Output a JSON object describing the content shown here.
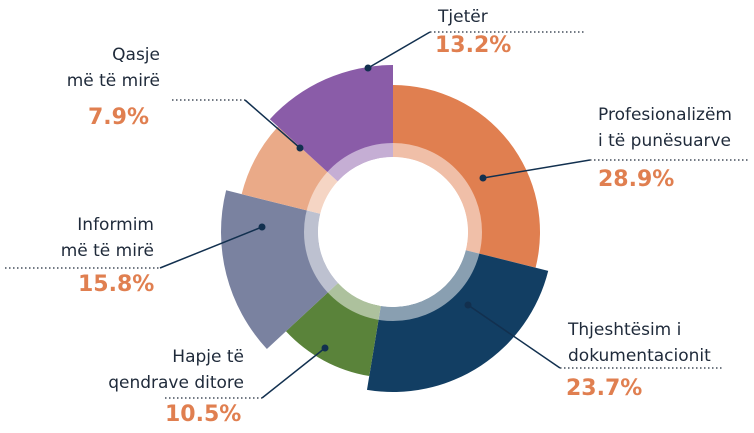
{
  "chart_data": {
    "type": "pie",
    "categories": [
      "Profesionalizëm\ni të punësuarve",
      "Thjeshtësim i\ndokumentacionit",
      "Hapje të\nqendrave ditore",
      "Informim\nmë të mirë",
      "Qasje\nmë të mirë",
      "Tjetër"
    ],
    "values": [
      28.9,
      23.7,
      10.5,
      15.8,
      7.9,
      13.2
    ],
    "value_labels": [
      "28.9%",
      "23.7%",
      "10.5%",
      "15.8%",
      "7.9%",
      "13.2%"
    ],
    "colors": [
      "#e07f50",
      "#123e63",
      "#5a833a",
      "#7a82a0",
      "#eaaa88",
      "#8a5ca8"
    ]
  }
}
